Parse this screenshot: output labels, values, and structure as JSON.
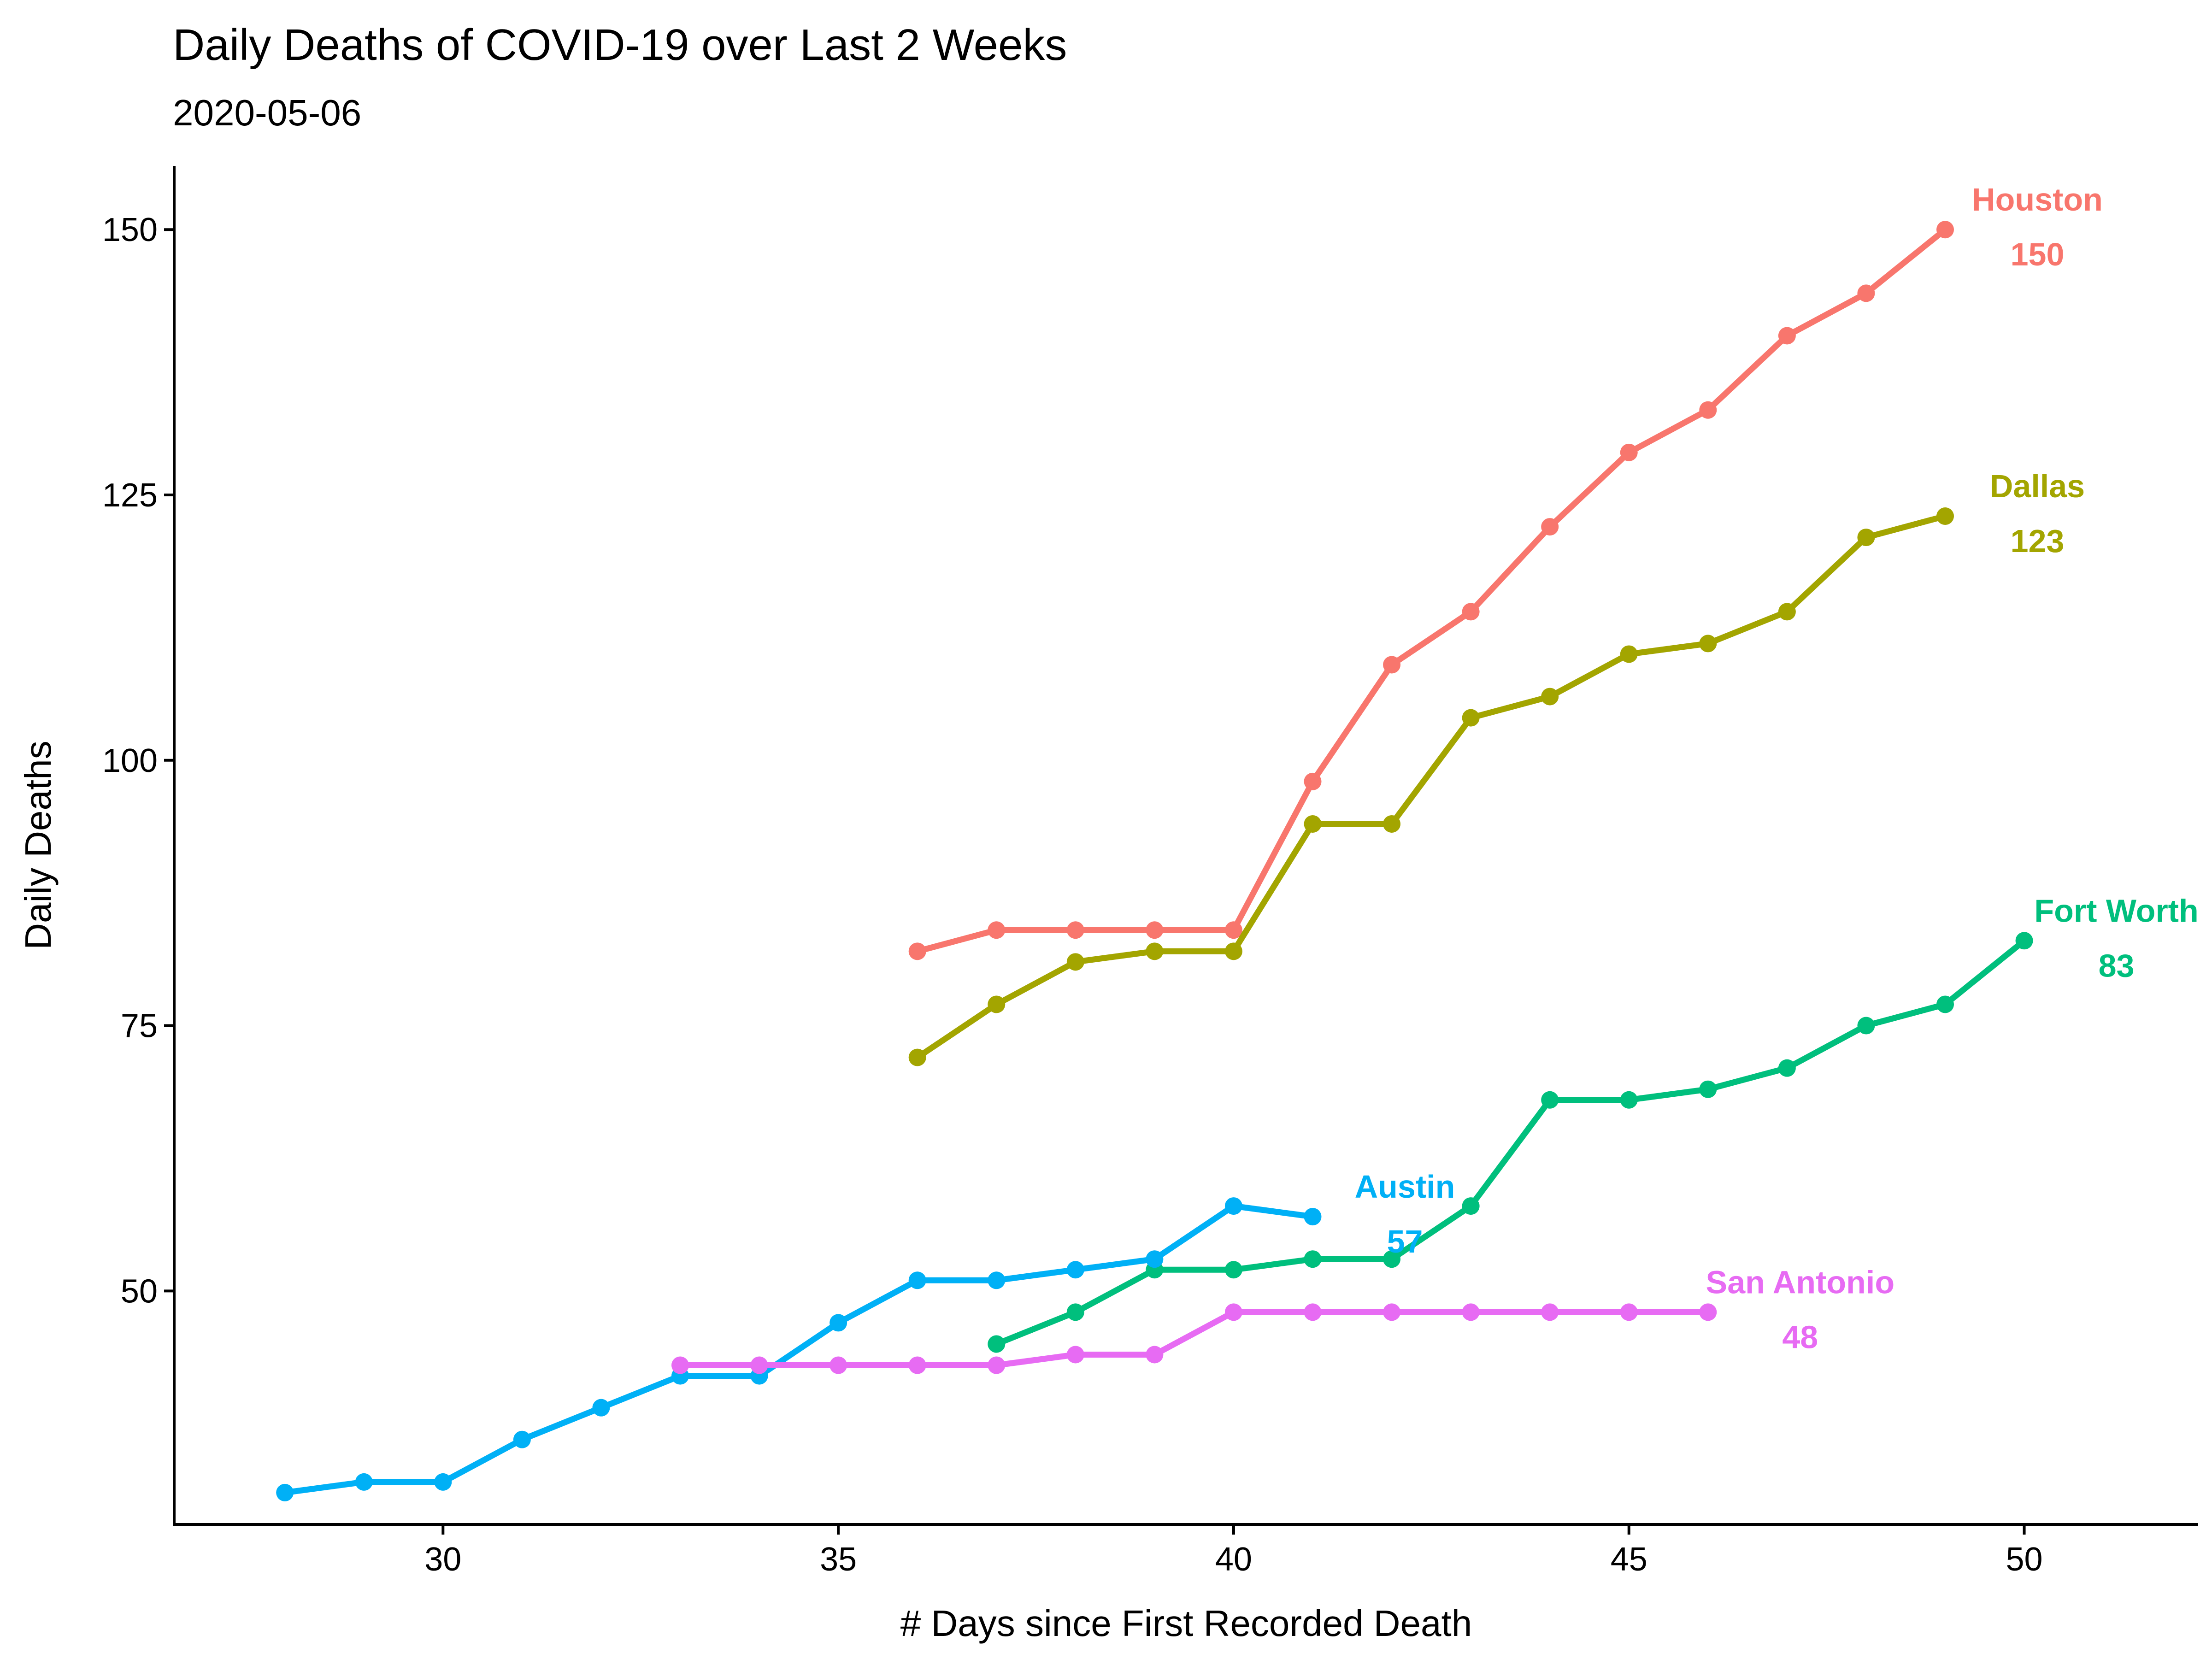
{
  "chart_data": {
    "type": "line",
    "title": "Daily Deaths of COVID-19 over Last 2 Weeks",
    "subtitle": "2020-05-06",
    "xlabel": "# Days since First Recorded Death",
    "ylabel": "Daily Deaths",
    "xlim": [
      26.6,
      52.2
    ],
    "ylim": [
      28,
      156
    ],
    "xticks": [
      30,
      35,
      40,
      45,
      50
    ],
    "yticks": [
      50,
      75,
      100,
      125,
      150
    ],
    "grid": false,
    "legend": "none",
    "series": [
      {
        "name": "Houston",
        "color": "#F8766D",
        "end_label": "150",
        "x": [
          36,
          37,
          38,
          39,
          40,
          41,
          42,
          43,
          44,
          45,
          46,
          47,
          48,
          49
        ],
        "y": [
          82,
          84,
          84,
          84,
          84,
          98,
          109,
          114,
          122,
          129,
          133,
          140,
          144,
          150
        ]
      },
      {
        "name": "Dallas",
        "color": "#A3A500",
        "end_label": "123",
        "x": [
          36,
          37,
          38,
          39,
          40,
          41,
          42,
          43,
          44,
          45,
          46,
          47,
          48,
          49
        ],
        "y": [
          72,
          77,
          81,
          82,
          82,
          94,
          94,
          104,
          106,
          110,
          111,
          114,
          121,
          123
        ]
      },
      {
        "name": "Fort Worth",
        "color": "#00BF7D",
        "end_label": "83",
        "x": [
          37,
          38,
          39,
          40,
          41,
          42,
          43,
          44,
          45,
          46,
          47,
          48,
          49,
          50
        ],
        "y": [
          45,
          48,
          52,
          52,
          53,
          53,
          58,
          68,
          68,
          69,
          71,
          75,
          77,
          83
        ]
      },
      {
        "name": "Austin",
        "color": "#00B0F6",
        "end_label": "57",
        "x": [
          28,
          29,
          30,
          31,
          32,
          33,
          34,
          35,
          36,
          37,
          38,
          39,
          40,
          41
        ],
        "y": [
          31,
          32,
          32,
          36,
          39,
          42,
          42,
          47,
          51,
          51,
          52,
          53,
          58,
          57
        ]
      },
      {
        "name": "San Antonio",
        "color": "#E76BF3",
        "end_label": "48",
        "x": [
          33,
          34,
          35,
          36,
          37,
          38,
          39,
          40,
          41,
          42,
          43,
          44,
          45,
          46
        ],
        "y": [
          43,
          43,
          43,
          43,
          43,
          44,
          44,
          48,
          48,
          48,
          48,
          48,
          48,
          48
        ]
      }
    ]
  }
}
